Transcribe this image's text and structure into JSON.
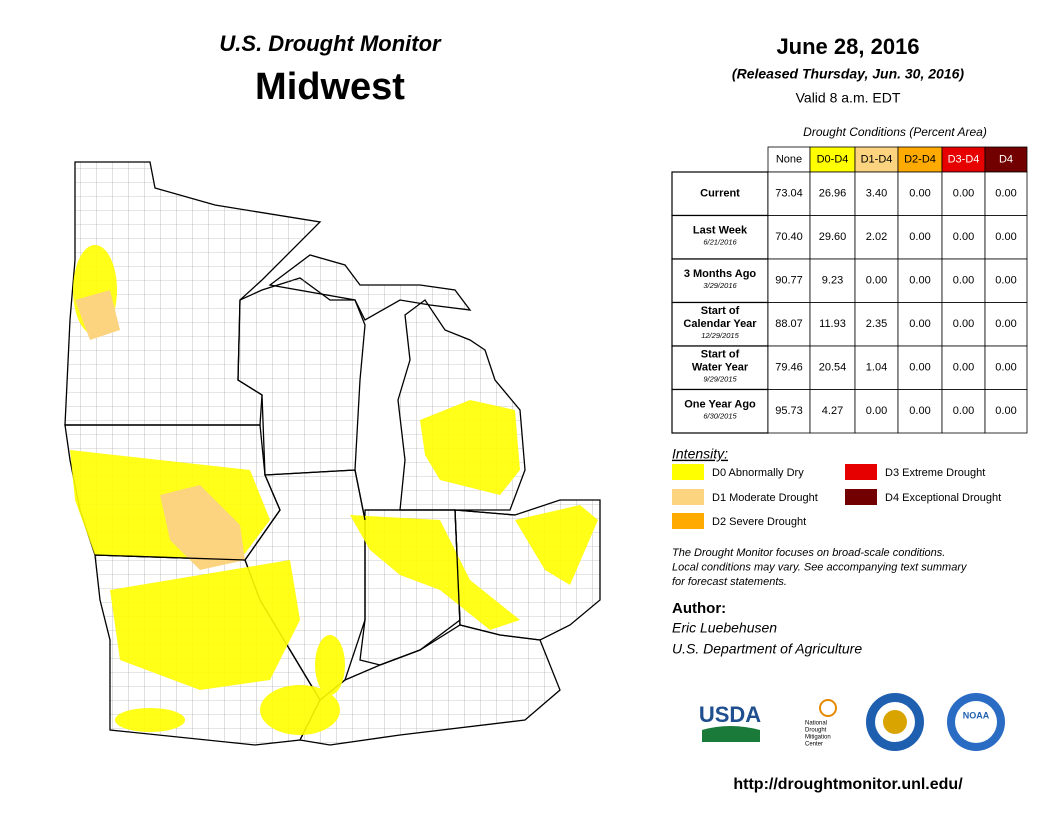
{
  "header": {
    "title": "U.S. Drought Monitor",
    "region": "Midwest",
    "date": "June 28, 2016",
    "released": "(Released Thursday, Jun. 30, 2016)",
    "valid": "Valid  8 a.m. EDT"
  },
  "table": {
    "caption": "Drought Conditions (Percent Area)",
    "columns": [
      {
        "label": "None",
        "color": "#ffffff"
      },
      {
        "label": "D0-D4",
        "color": "#ffff00"
      },
      {
        "label": "D1-D4",
        "color": "#fcd37f"
      },
      {
        "label": "D2-D4",
        "color": "#ffaa00"
      },
      {
        "label": "D3-D4",
        "color": "#e60000"
      },
      {
        "label": "D4",
        "color": "#730000"
      }
    ],
    "rows": [
      {
        "label": [
          "Current"
        ],
        "values": [
          "73.04",
          "26.96",
          "3.40",
          "0.00",
          "0.00",
          "0.00"
        ]
      },
      {
        "label": [
          "Last Week"
        ],
        "date": "6/21/2016",
        "values": [
          "70.40",
          "29.60",
          "2.02",
          "0.00",
          "0.00",
          "0.00"
        ]
      },
      {
        "label": [
          "3 Months Ago"
        ],
        "date": "3/29/2016",
        "values": [
          "90.77",
          "9.23",
          "0.00",
          "0.00",
          "0.00",
          "0.00"
        ]
      },
      {
        "label": [
          "Start of",
          "Calendar Year"
        ],
        "date": "12/29/2015",
        "values": [
          "88.07",
          "11.93",
          "2.35",
          "0.00",
          "0.00",
          "0.00"
        ]
      },
      {
        "label": [
          "Start of",
          "Water Year"
        ],
        "date": "9/29/2015",
        "values": [
          "79.46",
          "20.54",
          "1.04",
          "0.00",
          "0.00",
          "0.00"
        ]
      },
      {
        "label": [
          "One Year Ago"
        ],
        "date": "6/30/2015",
        "values": [
          "95.73",
          "4.27",
          "0.00",
          "0.00",
          "0.00",
          "0.00"
        ]
      }
    ]
  },
  "legend": {
    "title": "Intensity:",
    "items": [
      {
        "label": "D0 Abnormally Dry",
        "color": "#ffff00"
      },
      {
        "label": "D1 Moderate Drought",
        "color": "#fcd37f"
      },
      {
        "label": "D2 Severe Drought",
        "color": "#ffaa00"
      },
      {
        "label": "D3 Extreme Drought",
        "color": "#e60000"
      },
      {
        "label": "D4 Exceptional Drought",
        "color": "#730000"
      }
    ]
  },
  "note": [
    "The Drought Monitor focuses on broad-scale conditions.",
    "Local conditions may vary. See accompanying text summary",
    "for forecast statements."
  ],
  "author": {
    "heading": "Author:",
    "name": "Eric Luebehusen",
    "org": "U.S. Department of Agriculture"
  },
  "logos": {
    "usda": "USDA",
    "ndmc": [
      "National",
      "Drought",
      "Mitigation",
      "Center"
    ],
    "noaa": "NOAA"
  },
  "url": "http://droughtmonitor.unl.edu/"
}
